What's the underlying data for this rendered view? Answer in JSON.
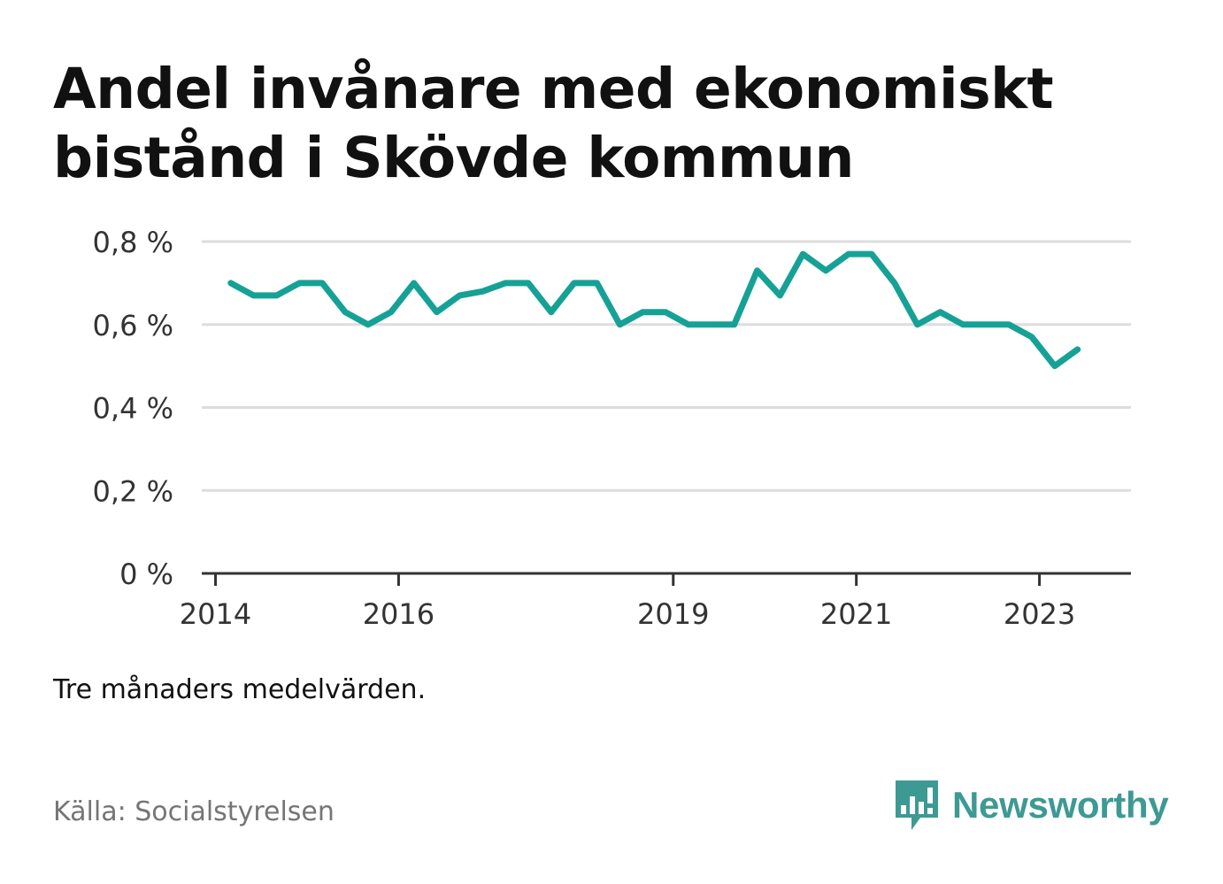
{
  "title": "Andel invånare med ekonomiskt bistånd i Skövde kommun",
  "subtitle": "Tre månaders medelvärden.",
  "source": "Källa: Socialstyrelsen",
  "brand": {
    "name": "Newsworthy",
    "icon": "newsworthy-logo-icon",
    "color": "#3d9a92"
  },
  "chart_data": {
    "type": "line",
    "title": "Andel invånare med ekonomiskt bistånd i Skövde kommun",
    "xlabel": "",
    "ylabel": "",
    "ylim": [
      0,
      0.8
    ],
    "y_ticks": [
      {
        "value": 0,
        "label": "0 %"
      },
      {
        "value": 0.2,
        "label": "0,2 %"
      },
      {
        "value": 0.4,
        "label": "0,4 %"
      },
      {
        "value": 0.6,
        "label": "0,6 %"
      },
      {
        "value": 0.8,
        "label": "0,8 %"
      }
    ],
    "x_ticks": [
      "2014",
      "2016",
      "2019",
      "2021",
      "2023"
    ],
    "grid": true,
    "line_color": "#16a196",
    "series": [
      {
        "values": [
          {
            "x": "2014-03",
            "y": 0.7
          },
          {
            "x": "2014-06",
            "y": 0.67
          },
          {
            "x": "2014-09",
            "y": 0.67
          },
          {
            "x": "2014-12",
            "y": 0.7
          },
          {
            "x": "2015-03",
            "y": 0.7
          },
          {
            "x": "2015-06",
            "y": 0.63
          },
          {
            "x": "2015-09",
            "y": 0.6
          },
          {
            "x": "2015-12",
            "y": 0.63
          },
          {
            "x": "2016-03",
            "y": 0.7
          },
          {
            "x": "2016-06",
            "y": 0.63
          },
          {
            "x": "2016-09",
            "y": 0.67
          },
          {
            "x": "2016-12",
            "y": 0.68
          },
          {
            "x": "2017-03",
            "y": 0.7
          },
          {
            "x": "2017-06",
            "y": 0.7
          },
          {
            "x": "2017-09",
            "y": 0.63
          },
          {
            "x": "2017-12",
            "y": 0.7
          },
          {
            "x": "2018-03",
            "y": 0.7
          },
          {
            "x": "2018-06",
            "y": 0.6
          },
          {
            "x": "2018-09",
            "y": 0.63
          },
          {
            "x": "2018-12",
            "y": 0.63
          },
          {
            "x": "2019-03",
            "y": 0.6
          },
          {
            "x": "2019-06",
            "y": 0.6
          },
          {
            "x": "2019-09",
            "y": 0.6
          },
          {
            "x": "2019-12",
            "y": 0.73
          },
          {
            "x": "2020-03",
            "y": 0.67
          },
          {
            "x": "2020-06",
            "y": 0.77
          },
          {
            "x": "2020-09",
            "y": 0.73
          },
          {
            "x": "2020-12",
            "y": 0.77
          },
          {
            "x": "2021-03",
            "y": 0.77
          },
          {
            "x": "2021-06",
            "y": 0.7
          },
          {
            "x": "2021-09",
            "y": 0.6
          },
          {
            "x": "2021-12",
            "y": 0.63
          },
          {
            "x": "2022-03",
            "y": 0.6
          },
          {
            "x": "2022-06",
            "y": 0.6
          },
          {
            "x": "2022-09",
            "y": 0.6
          },
          {
            "x": "2022-12",
            "y": 0.57
          },
          {
            "x": "2023-03",
            "y": 0.5
          },
          {
            "x": "2023-06",
            "y": 0.54
          }
        ]
      }
    ]
  }
}
